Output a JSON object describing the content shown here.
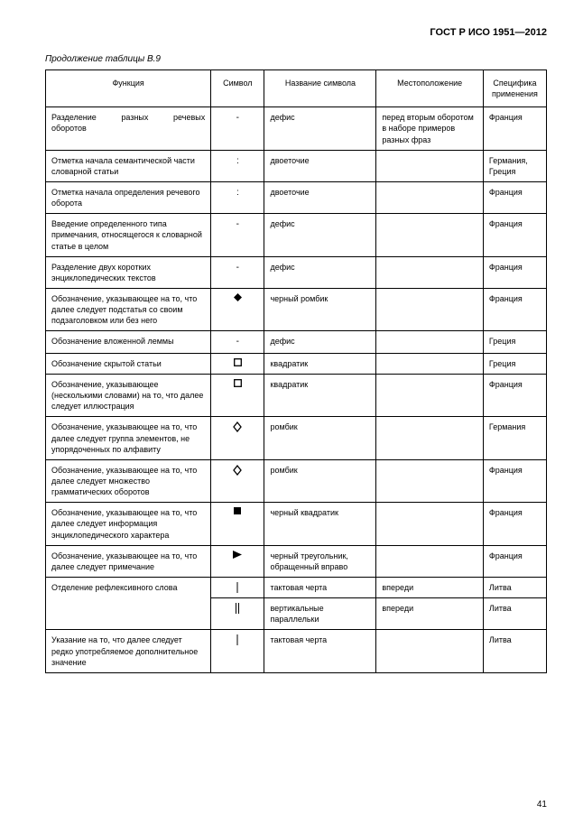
{
  "doc_id": "ГОСТ Р ИСО 1951—2012",
  "caption": "Продолжение таблицы В.9",
  "page_number": "41",
  "headers": {
    "c1": "Функция",
    "c2": "Символ",
    "c3": "Название символа",
    "c4": "Местоположение",
    "c5": "Специфика применения"
  },
  "rows": [
    {
      "func_html": "<span class='justify' style='display:block'>Разделение разных речевых</span>оборотов",
      "symbol": "hyphen",
      "symname": "дефис",
      "loc": "перед вторым оборотом в наборе примеров разных фраз",
      "spec": "Франция"
    },
    {
      "func": "Отметка начала семантической части словарной статьи",
      "symbol": "colon",
      "symname": "двоеточие",
      "loc": "",
      "spec": "Германия, Греция"
    },
    {
      "func": "Отметка начала определения речевого оборота",
      "symbol": "colon",
      "symname": "двоеточие",
      "loc": "",
      "spec": "Франция"
    },
    {
      "func": "Введение определенного типа примечания, относящегося к словарной статье в целом",
      "symbol": "hyphen",
      "symname": "дефис",
      "loc": "",
      "spec": "Франция"
    },
    {
      "func": "Разделение двух коротких энциклопедических текстов",
      "symbol": "hyphen",
      "symname": "дефис",
      "loc": "",
      "spec": "Франция"
    },
    {
      "func": "Обозначение, указывающее на то, что далее следует подстатья со своим подзаголовком или без него",
      "symbol": "black-diamond",
      "symname": "черный ромбик",
      "loc": "",
      "spec": "Франция"
    },
    {
      "func": "Обозначение вложенной леммы",
      "symbol": "hyphen",
      "symname": "дефис",
      "loc": "",
      "spec": "Греция"
    },
    {
      "func": "Обозначение скрытой статьи",
      "symbol": "white-square",
      "symname": "квадратик",
      "loc": "",
      "spec": "Греция"
    },
    {
      "func": "Обозначение, указывающее (несколькими словами) на то, что далее следует иллюстрация",
      "symbol": "white-square",
      "symname": "квадратик",
      "loc": "",
      "spec": "Франция"
    },
    {
      "func": "Обозначение, указывающее на то, что далее следует группа элементов, не упорядоченных по алфавиту",
      "symbol": "white-diamond",
      "symname": "ромбик",
      "loc": "",
      "spec": "Германия"
    },
    {
      "func": "Обозначение, указывающее на то, что далее следует множество грамматических оборотов",
      "symbol": "white-diamond",
      "symname": "ромбик",
      "loc": "",
      "spec": "Франция"
    },
    {
      "func": "Обозначение, указывающее на то, что далее следует информация энциклопедического характера",
      "symbol": "black-square",
      "symname": "черный квадратик",
      "loc": "",
      "spec": "Франция"
    },
    {
      "func": "Обозначение, указывающее на то, что далее следует примечание",
      "symbol": "black-triangle-right",
      "symname": "черный треугольник, обращенный вправо",
      "loc": "",
      "spec": "Франция"
    },
    {
      "func": "Отделение рефлексивного слова",
      "subrows": [
        {
          "symbol": "bar-single",
          "symname": "тактовая черта",
          "loc": "впереди",
          "spec": "Литва"
        },
        {
          "symbol": "bar-double",
          "symname": "вертикальные параллельки",
          "loc": "впереди",
          "spec": "Литва"
        }
      ]
    },
    {
      "func": "Указание на то, что далее следует редко употребляемое дополнительное значение",
      "symbol": "bar-single",
      "symname": "тактовая черта",
      "loc": "",
      "spec": "Литва"
    }
  ],
  "symbols_svg": {
    "hyphen": "<span style='font-size:10px'>-</span>",
    "colon": "<span style='font-size:10px'>:</span>",
    "black-diamond": "<svg width='9' height='9'><polygon points='4.5,0 9,4.5 4.5,9 0,4.5' fill='#000'/></svg>",
    "white-diamond": "<svg width='10' height='12'><polygon points='5,1 9,6 5,11 1,6' fill='none' stroke='#000' stroke-width='1.3'/></svg>",
    "white-square": "<svg width='9' height='9'><rect x='0.7' y='0.7' width='7.6' height='7.6' fill='none' stroke='#000' stroke-width='1.3'/></svg>",
    "black-square": "<svg width='8' height='8'><rect x='0' y='0' width='8' height='8' fill='#000'/></svg>",
    "black-triangle-right": "<svg width='10' height='9'><polygon points='0,0 10,4.5 0,9' fill='#000'/></svg>",
    "bar-single": "<svg width='6' height='12'><line x1='3' y1='0' x2='3' y2='12' stroke='#000' stroke-width='1'/></svg>",
    "bar-double": "<svg width='8' height='12'><line x1='2.5' y1='0' x2='2.5' y2='12' stroke='#000' stroke-width='1'/><line x1='5.5' y1='0' x2='5.5' y2='12' stroke='#000' stroke-width='1'/></svg>"
  }
}
